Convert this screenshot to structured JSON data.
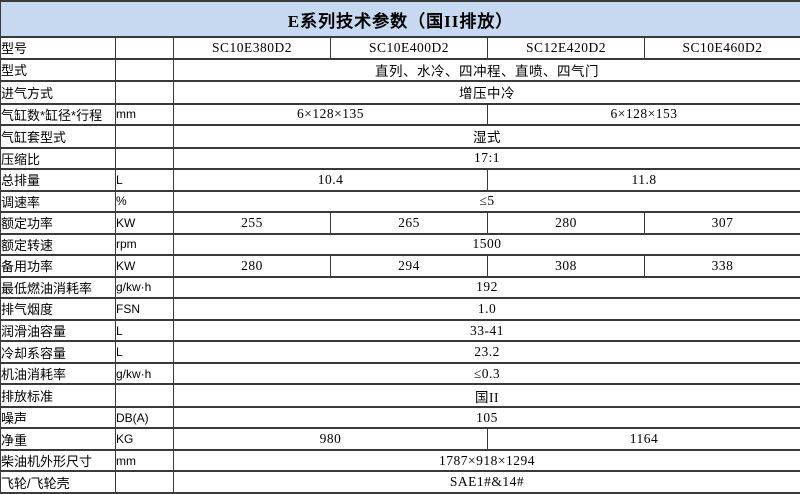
{
  "title": "E系列技术参数（国II排放）",
  "colors": {
    "title_background": "#c6d9f1",
    "title_border": "#10243e",
    "grid_line": "#3a3a3a",
    "body_background": "#ffffff",
    "text": "#000000"
  },
  "layout_hints": {
    "column_count": 6,
    "model_column_count": 4
  },
  "table": {
    "rows": [
      {
        "label": "型号",
        "unit": "",
        "values": [
          {
            "text": "SC10E380D2",
            "span": 1
          },
          {
            "text": "SC10E400D2",
            "span": 1
          },
          {
            "text": "SC12E420D2",
            "span": 1
          },
          {
            "text": "SC10E460D2",
            "span": 1
          }
        ]
      },
      {
        "label": "型式",
        "unit": "",
        "values": [
          {
            "text": "直列、水冷、四冲程、直喷、四气门",
            "span": 4
          }
        ]
      },
      {
        "label": "进气方式",
        "unit": "",
        "values": [
          {
            "text": "增压中冷",
            "span": 4
          }
        ]
      },
      {
        "label": "气缸数*缸径*行程",
        "unit": "mm",
        "values": [
          {
            "text": "6×128×135",
            "span": 2
          },
          {
            "text": "6×128×153",
            "span": 2
          }
        ]
      },
      {
        "label": "气缸套型式",
        "unit": "",
        "values": [
          {
            "text": "湿式",
            "span": 4
          }
        ]
      },
      {
        "label": "压缩比",
        "unit": "",
        "values": [
          {
            "text": "17:1",
            "span": 4
          }
        ]
      },
      {
        "label": "总排量",
        "unit": "L",
        "values": [
          {
            "text": "10.4",
            "span": 2
          },
          {
            "text": "11.8",
            "span": 2
          }
        ]
      },
      {
        "label": "调速率",
        "unit": "%",
        "values": [
          {
            "text": "≤5",
            "span": 4
          }
        ]
      },
      {
        "label": "额定功率",
        "unit": "KW",
        "values": [
          {
            "text": "255",
            "span": 1
          },
          {
            "text": "265",
            "span": 1
          },
          {
            "text": "280",
            "span": 1
          },
          {
            "text": "307",
            "span": 1
          }
        ]
      },
      {
        "label": "额定转速",
        "unit": "rpm",
        "values": [
          {
            "text": "1500",
            "span": 4
          }
        ]
      },
      {
        "label": "备用功率",
        "unit": "KW",
        "values": [
          {
            "text": "280",
            "span": 1
          },
          {
            "text": "294",
            "span": 1
          },
          {
            "text": "308",
            "span": 1
          },
          {
            "text": "338",
            "span": 1
          }
        ]
      },
      {
        "label": "最低燃油消耗率",
        "unit": "g/kw·h",
        "values": [
          {
            "text": "192",
            "span": 4
          }
        ]
      },
      {
        "label": "排气烟度",
        "unit": "FSN",
        "values": [
          {
            "text": "1.0",
            "span": 4
          }
        ]
      },
      {
        "label": "润滑油容量",
        "unit": "L",
        "values": [
          {
            "text": "33-41",
            "span": 4
          }
        ]
      },
      {
        "label": "冷却系容量",
        "unit": "L",
        "values": [
          {
            "text": "23.2",
            "span": 4
          }
        ]
      },
      {
        "label": "机油消耗率",
        "unit": "g/kw·h",
        "values": [
          {
            "text": "≤0.3",
            "span": 4
          }
        ]
      },
      {
        "label": "排放标准",
        "unit": "",
        "values": [
          {
            "text": "国II",
            "span": 4
          }
        ]
      },
      {
        "label": "噪声",
        "unit": "DB(A)",
        "values": [
          {
            "text": "105",
            "span": 4
          }
        ]
      },
      {
        "label": "净重",
        "unit": "KG",
        "values": [
          {
            "text": "980",
            "span": 2
          },
          {
            "text": "1164",
            "span": 2
          }
        ]
      },
      {
        "label": "柴油机外形尺寸",
        "unit": "mm",
        "values": [
          {
            "text": "1787×918×1294",
            "span": 4
          }
        ]
      },
      {
        "label": "飞轮/飞轮壳",
        "unit": "",
        "values": [
          {
            "text": "SAE1#&14#",
            "span": 4
          }
        ]
      }
    ]
  }
}
